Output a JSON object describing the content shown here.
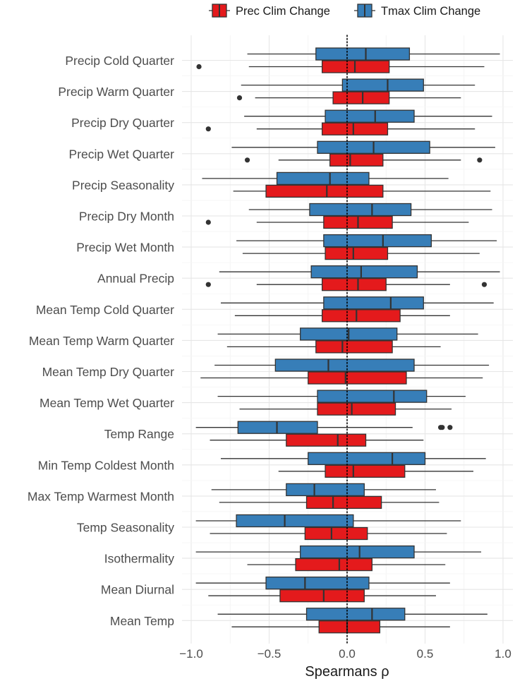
{
  "chart_data": {
    "type": "boxplot",
    "orientation": "horizontal",
    "xlabel": "Spearmans ρ",
    "xlim": [
      -1.02,
      1.02
    ],
    "xticks": [
      -1.0,
      -0.5,
      0.0,
      0.5,
      1.0
    ],
    "xtick_labels": [
      "−1.0",
      "−0.5",
      "0.0",
      "0.5",
      "1.0"
    ],
    "reference_line": {
      "x": 0,
      "style": "dotted"
    },
    "grid": true,
    "legend_position": "top",
    "categories": [
      "Precip Cold Quarter",
      "Precip Warm Quarter",
      "Precip Dry Quarter",
      "Precip Wet Quarter",
      "Precip Seasonality",
      "Precip Dry Month",
      "Precip Wet Month",
      "Annual Precip",
      "Mean Temp Cold Quarter",
      "Mean Temp Warm Quarter",
      "Mean Temp Dry Quarter",
      "Mean Temp Wet Quarter",
      "Temp Range",
      "Min Temp Coldest Month",
      "Max Temp Warmest Month",
      "Temp Seasonality",
      "Isothermality",
      "Mean Diurnal",
      "Mean Temp"
    ],
    "series": [
      {
        "name": "Prec Clim Change",
        "color": "#e41a1c",
        "boxes": [
          {
            "min": -0.63,
            "q1": -0.16,
            "median": 0.05,
            "q3": 0.27,
            "max": 0.88,
            "outliers": [
              -0.95
            ]
          },
          {
            "min": -0.59,
            "q1": -0.09,
            "median": 0.1,
            "q3": 0.27,
            "max": 0.73,
            "outliers": [
              -0.69
            ]
          },
          {
            "min": -0.58,
            "q1": -0.16,
            "median": 0.04,
            "q3": 0.26,
            "max": 0.82,
            "outliers": [
              -0.89
            ]
          },
          {
            "min": -0.44,
            "q1": -0.11,
            "median": 0.02,
            "q3": 0.23,
            "max": 0.73,
            "outliers": [
              -0.64,
              0.85
            ]
          },
          {
            "min": -0.73,
            "q1": -0.52,
            "median": -0.13,
            "q3": 0.23,
            "max": 0.92,
            "outliers": []
          },
          {
            "min": -0.58,
            "q1": -0.15,
            "median": 0.07,
            "q3": 0.29,
            "max": 0.78,
            "outliers": [
              -0.89
            ]
          },
          {
            "min": -0.67,
            "q1": -0.14,
            "median": 0.04,
            "q3": 0.26,
            "max": 0.85,
            "outliers": []
          },
          {
            "min": -0.58,
            "q1": -0.16,
            "median": 0.07,
            "q3": 0.25,
            "max": 0.66,
            "outliers": [
              -0.89,
              0.88
            ]
          },
          {
            "min": -0.72,
            "q1": -0.16,
            "median": 0.06,
            "q3": 0.34,
            "max": 0.66,
            "outliers": []
          },
          {
            "min": -0.77,
            "q1": -0.2,
            "median": -0.03,
            "q3": 0.29,
            "max": 0.6,
            "outliers": []
          },
          {
            "min": -0.94,
            "q1": -0.25,
            "median": -0.01,
            "q3": 0.38,
            "max": 0.87,
            "outliers": []
          },
          {
            "min": -0.69,
            "q1": -0.19,
            "median": 0.03,
            "q3": 0.31,
            "max": 0.67,
            "outliers": []
          },
          {
            "min": -0.88,
            "q1": -0.39,
            "median": -0.06,
            "q3": 0.12,
            "max": 0.49,
            "outliers": []
          },
          {
            "min": -0.44,
            "q1": -0.14,
            "median": 0.04,
            "q3": 0.37,
            "max": 0.81,
            "outliers": []
          },
          {
            "min": -0.82,
            "q1": -0.26,
            "median": -0.09,
            "q3": 0.22,
            "max": 0.59,
            "outliers": []
          },
          {
            "min": -0.88,
            "q1": -0.27,
            "median": -0.1,
            "q3": 0.13,
            "max": 0.64,
            "outliers": []
          },
          {
            "min": -0.64,
            "q1": -0.33,
            "median": -0.05,
            "q3": 0.16,
            "max": 0.63,
            "outliers": []
          },
          {
            "min": -0.89,
            "q1": -0.43,
            "median": -0.15,
            "q3": 0.11,
            "max": 0.57,
            "outliers": []
          },
          {
            "min": -0.74,
            "q1": -0.18,
            "median": 0.0,
            "q3": 0.21,
            "max": 0.66,
            "outliers": []
          }
        ]
      },
      {
        "name": "Tmax Clim Change",
        "color": "#377eb8",
        "boxes": [
          {
            "min": -0.64,
            "q1": -0.2,
            "median": 0.12,
            "q3": 0.4,
            "max": 0.98,
            "outliers": []
          },
          {
            "min": -0.68,
            "q1": -0.03,
            "median": 0.26,
            "q3": 0.49,
            "max": 0.82,
            "outliers": []
          },
          {
            "min": -0.66,
            "q1": -0.14,
            "median": 0.18,
            "q3": 0.43,
            "max": 0.93,
            "outliers": []
          },
          {
            "min": -0.74,
            "q1": -0.19,
            "median": 0.17,
            "q3": 0.53,
            "max": 0.95,
            "outliers": []
          },
          {
            "min": -0.93,
            "q1": -0.45,
            "median": -0.11,
            "q3": 0.14,
            "max": 0.65,
            "outliers": []
          },
          {
            "min": -0.63,
            "q1": -0.24,
            "median": 0.16,
            "q3": 0.41,
            "max": 0.93,
            "outliers": []
          },
          {
            "min": -0.71,
            "q1": -0.15,
            "median": 0.23,
            "q3": 0.54,
            "max": 0.96,
            "outliers": []
          },
          {
            "min": -0.82,
            "q1": -0.23,
            "median": 0.09,
            "q3": 0.45,
            "max": 0.98,
            "outliers": []
          },
          {
            "min": -0.81,
            "q1": -0.15,
            "median": 0.28,
            "q3": 0.49,
            "max": 0.94,
            "outliers": []
          },
          {
            "min": -0.83,
            "q1": -0.3,
            "median": 0.01,
            "q3": 0.32,
            "max": 0.84,
            "outliers": []
          },
          {
            "min": -0.85,
            "q1": -0.46,
            "median": -0.12,
            "q3": 0.43,
            "max": 0.91,
            "outliers": []
          },
          {
            "min": -0.83,
            "q1": -0.19,
            "median": 0.3,
            "q3": 0.51,
            "max": 0.76,
            "outliers": []
          },
          {
            "min": -0.97,
            "q1": -0.7,
            "median": -0.45,
            "q3": -0.19,
            "max": 0.42,
            "outliers": [
              0.6,
              0.61,
              0.66
            ]
          },
          {
            "min": -0.81,
            "q1": -0.25,
            "median": 0.29,
            "q3": 0.5,
            "max": 0.89,
            "outliers": []
          },
          {
            "min": -0.87,
            "q1": -0.39,
            "median": -0.21,
            "q3": 0.11,
            "max": 0.57,
            "outliers": []
          },
          {
            "min": -0.97,
            "q1": -0.71,
            "median": -0.4,
            "q3": 0.04,
            "max": 0.73,
            "outliers": []
          },
          {
            "min": -0.97,
            "q1": -0.3,
            "median": 0.08,
            "q3": 0.43,
            "max": 0.86,
            "outliers": []
          },
          {
            "min": -0.97,
            "q1": -0.52,
            "median": -0.27,
            "q3": 0.14,
            "max": 0.66,
            "outliers": []
          },
          {
            "min": -0.83,
            "q1": -0.26,
            "median": 0.16,
            "q3": 0.37,
            "max": 0.9,
            "outliers": []
          }
        ]
      }
    ]
  }
}
